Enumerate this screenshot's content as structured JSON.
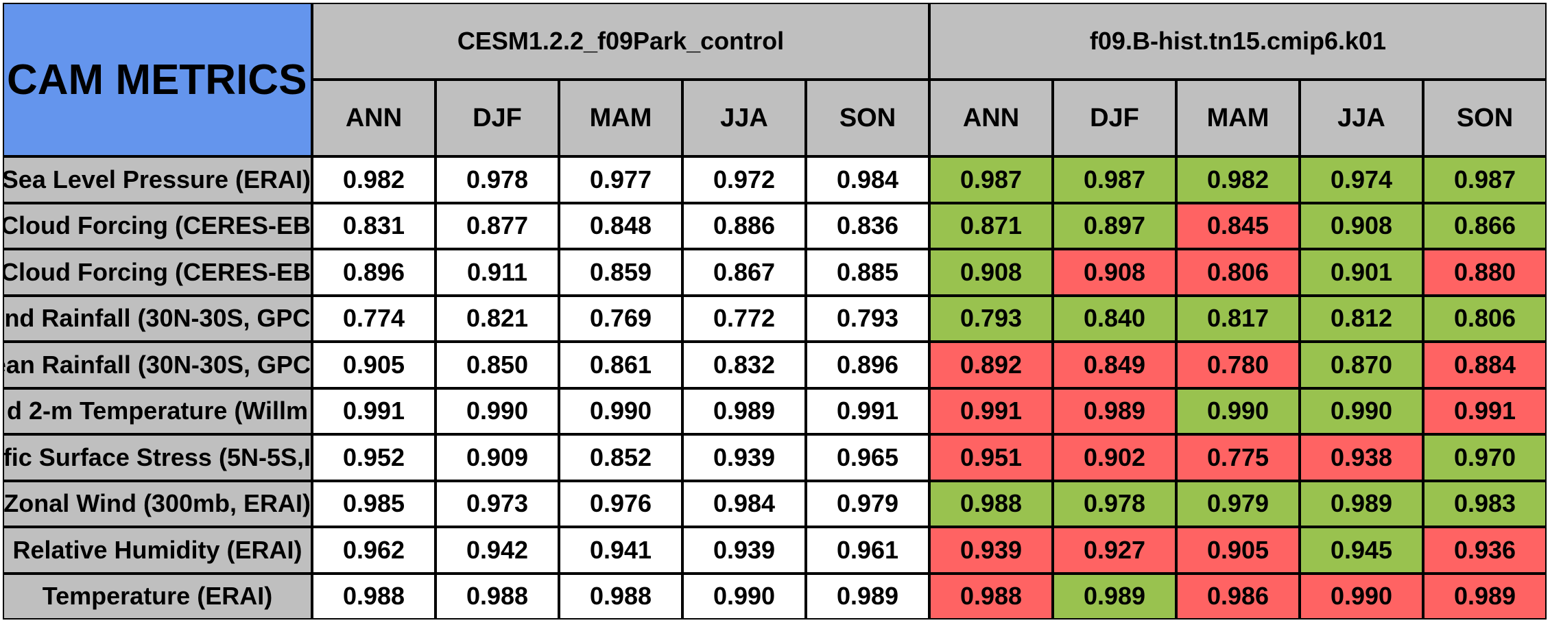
{
  "title": "CAM METRICS",
  "groups": [
    {
      "name": "CESM1.2.2_f09Park_control"
    },
    {
      "name": "f09.B-hist.tn15.cmip6.k01"
    }
  ],
  "seasons": [
    "ANN",
    "DJF",
    "MAM",
    "JJA",
    "SON"
  ],
  "colors": {
    "header_blue": "#6495ED",
    "header_grey": "#bfbfbf",
    "better": "#99C24F",
    "worse": "#FF6363"
  },
  "chart_data": {
    "type": "table",
    "title": "CAM METRICS",
    "columns": [
      "ANN",
      "DJF",
      "MAM",
      "JJA",
      "SON"
    ],
    "series": [
      {
        "name": "CESM1.2.2_f09Park_control"
      },
      {
        "name": "f09.B-hist.tn15.cmip6.k01"
      }
    ],
    "rows": [
      {
        "label": "Sea Level Pressure (ERAI)",
        "control": [
          "0.982",
          "0.978",
          "0.977",
          "0.972",
          "0.984"
        ],
        "test": [
          "0.987",
          "0.987",
          "0.982",
          "0.974",
          "0.987"
        ],
        "status": [
          "good",
          "good",
          "good",
          "good",
          "good"
        ]
      },
      {
        "label": "Cloud Forcing (CERES-EB",
        "control": [
          "0.831",
          "0.877",
          "0.848",
          "0.886",
          "0.836"
        ],
        "test": [
          "0.871",
          "0.897",
          "0.845",
          "0.908",
          "0.866"
        ],
        "status": [
          "good",
          "good",
          "bad",
          "good",
          "good"
        ]
      },
      {
        "label": "Cloud Forcing (CERES-EB",
        "control": [
          "0.896",
          "0.911",
          "0.859",
          "0.867",
          "0.885"
        ],
        "test": [
          "0.908",
          "0.908",
          "0.806",
          "0.901",
          "0.880"
        ],
        "status": [
          "good",
          "bad",
          "bad",
          "good",
          "bad"
        ]
      },
      {
        "label": "nd Rainfall (30N-30S, GPC",
        "control": [
          "0.774",
          "0.821",
          "0.769",
          "0.772",
          "0.793"
        ],
        "test": [
          "0.793",
          "0.840",
          "0.817",
          "0.812",
          "0.806"
        ],
        "status": [
          "good",
          "good",
          "good",
          "good",
          "good"
        ]
      },
      {
        "label": "ean Rainfall (30N-30S, GPC",
        "control": [
          "0.905",
          "0.850",
          "0.861",
          "0.832",
          "0.896"
        ],
        "test": [
          "0.892",
          "0.849",
          "0.780",
          "0.870",
          "0.884"
        ],
        "status": [
          "bad",
          "bad",
          "bad",
          "good",
          "bad"
        ]
      },
      {
        "label": "d 2-m Temperature (Willm",
        "control": [
          "0.991",
          "0.990",
          "0.990",
          "0.989",
          "0.991"
        ],
        "test": [
          "0.991",
          "0.989",
          "0.990",
          "0.990",
          "0.991"
        ],
        "status": [
          "bad",
          "bad",
          "good",
          "good",
          "bad"
        ]
      },
      {
        "label": "fic Surface Stress (5N-5S,I",
        "control": [
          "0.952",
          "0.909",
          "0.852",
          "0.939",
          "0.965"
        ],
        "test": [
          "0.951",
          "0.902",
          "0.775",
          "0.938",
          "0.970"
        ],
        "status": [
          "bad",
          "bad",
          "bad",
          "bad",
          "good"
        ]
      },
      {
        "label": "Zonal Wind (300mb, ERAI)",
        "control": [
          "0.985",
          "0.973",
          "0.976",
          "0.984",
          "0.979"
        ],
        "test": [
          "0.988",
          "0.978",
          "0.979",
          "0.989",
          "0.983"
        ],
        "status": [
          "good",
          "good",
          "good",
          "good",
          "good"
        ]
      },
      {
        "label": "Relative Humidity (ERAI)",
        "control": [
          "0.962",
          "0.942",
          "0.941",
          "0.939",
          "0.961"
        ],
        "test": [
          "0.939",
          "0.927",
          "0.905",
          "0.945",
          "0.936"
        ],
        "status": [
          "bad",
          "bad",
          "bad",
          "good",
          "bad"
        ]
      },
      {
        "label": "Temperature (ERAI)",
        "control": [
          "0.988",
          "0.988",
          "0.988",
          "0.990",
          "0.989"
        ],
        "test": [
          "0.988",
          "0.989",
          "0.986",
          "0.990",
          "0.989"
        ],
        "status": [
          "bad",
          "good",
          "bad",
          "bad",
          "bad"
        ]
      }
    ]
  }
}
